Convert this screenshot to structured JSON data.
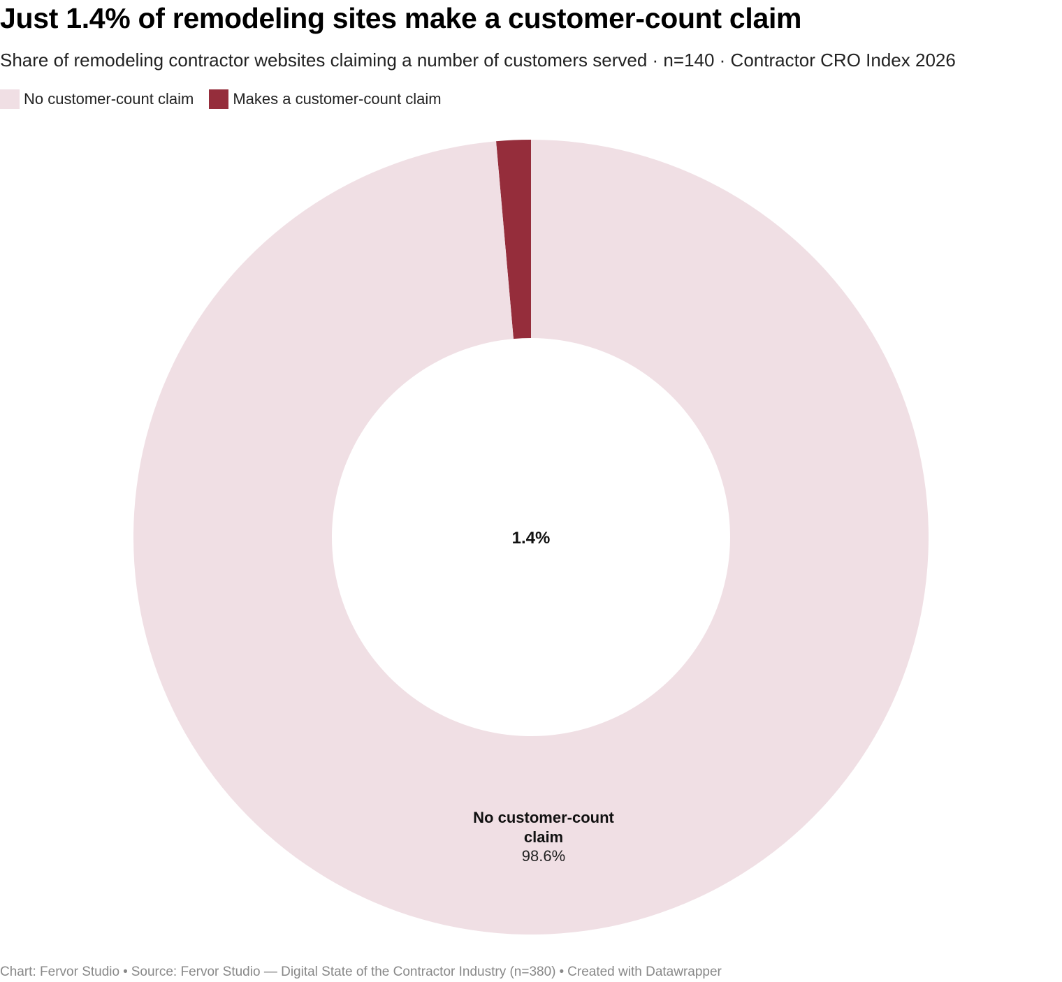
{
  "header": {
    "title": "Just 1.4% of remodeling sites make a customer-count claim",
    "subtitle": "Share of remodeling contractor websites claiming a number of customers served · n=140 · Contractor CRO Index 2026"
  },
  "chart_data": {
    "type": "pie",
    "variant": "donut",
    "slices": [
      {
        "label": "Makes a customer-count claim",
        "value": 1.4,
        "color": "#952d3b"
      },
      {
        "label": "No customer-count claim",
        "value": 98.6,
        "color": "#f0dfe4"
      }
    ],
    "legend": {
      "placement": "top-left",
      "items": [
        {
          "label": "No customer-count claim",
          "color": "#f0dfe4"
        },
        {
          "label": "Makes a customer-count claim",
          "color": "#952d3b"
        }
      ]
    },
    "center_label": "1.4%",
    "slice_label": {
      "name_lines": [
        "No customer-count",
        "claim"
      ],
      "value": "98.6%"
    },
    "unit": "%"
  },
  "footer": {
    "chart_credit": "Chart: Fervor Studio",
    "source": "Source: Fervor Studio — Digital State of the Contractor Industry (n=380)",
    "tool": "Created with Datawrapper",
    "separator": "•"
  }
}
